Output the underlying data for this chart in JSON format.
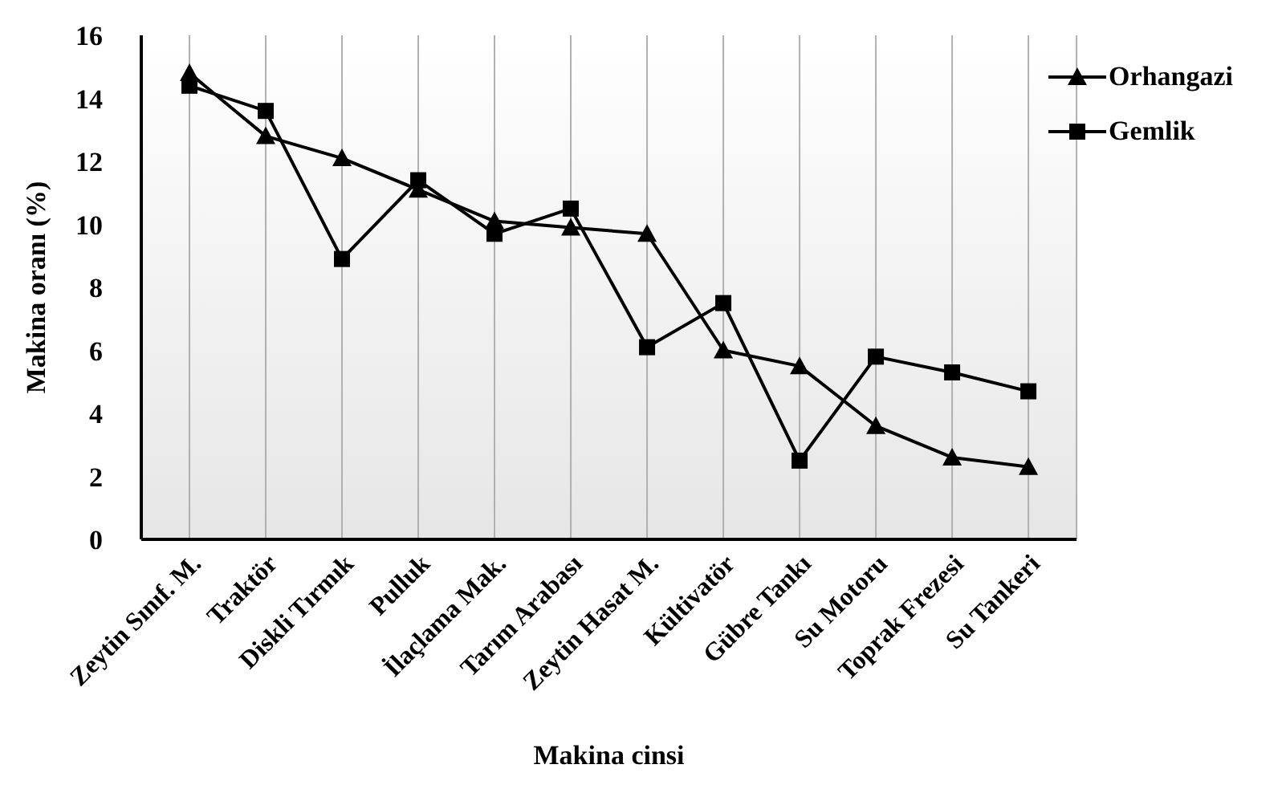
{
  "chart_data": {
    "type": "line",
    "xlabel": "Makina cinsi",
    "ylabel": "Makina oranı (%)",
    "categories": [
      "Zeytin Sınıf. M.",
      "Traktör",
      "Diskli Tırmık",
      "Pulluk",
      "İlaçlama Mak.",
      "Tarım Arabası",
      "Zeytin Hasat M.",
      "Kültivatör",
      "Gübre Tankı",
      "Su Motoru",
      "Toprak Frezesi",
      "Su Tankeri"
    ],
    "series": [
      {
        "name": "Orhangazi",
        "color": "#000000",
        "marker": "triangle",
        "values": [
          14.8,
          12.8,
          12.1,
          11.1,
          10.1,
          9.9,
          9.7,
          6.0,
          5.5,
          3.6,
          2.6,
          2.3
        ]
      },
      {
        "name": "Gemlik",
        "color": "#000000",
        "marker": "square",
        "values": [
          14.4,
          13.6,
          8.9,
          11.4,
          9.7,
          10.5,
          6.1,
          7.5,
          2.5,
          5.8,
          5.3,
          4.7
        ]
      }
    ],
    "ylim": [
      0,
      16
    ],
    "yticks": [
      0,
      2,
      4,
      6,
      8,
      10,
      12,
      14,
      16
    ],
    "grid": "x",
    "legend": "top right",
    "line_style": "solid"
  }
}
